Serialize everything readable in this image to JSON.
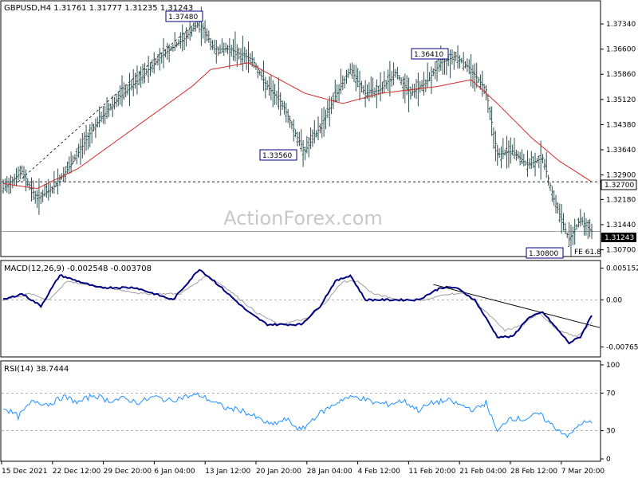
{
  "colors": {
    "price": "#2f4f4f",
    "ma": "#d42a2a",
    "macd": "#000080",
    "signal": "#a0a0a0",
    "rsi": "#1e90ff",
    "box_border": "#000080"
  },
  "chart_data": [
    {
      "type": "candlestick",
      "title": "GBPUSD,H4  1.31761 1.31777 1.31235 1.31243",
      "ylim": [
        1.3055,
        1.3795
      ],
      "y_ticks": [
        "1.37340",
        "1.36600",
        "1.35860",
        "1.35120",
        "1.34380",
        "1.33640",
        "1.32900",
        "1.32180",
        "1.31440",
        "1.30700"
      ],
      "x_labels": [
        "15 Dec 2021",
        "22 Dec 12:00",
        "29 Dec 20:00",
        "6 Jan 04:00",
        "13 Jan 12:00",
        "20 Jan 20:00",
        "28 Jan 04:00",
        "4 Feb 12:00",
        "11 Feb 20:00",
        "21 Feb 04:00",
        "28 Feb 12:00",
        "7 Mar 20:00"
      ],
      "annotations": [
        "1.37480",
        "1.36410",
        "1.33560",
        "1.30800",
        "FE 61.8"
      ],
      "levels": [
        "1.32700",
        "1.31243"
      ],
      "watermark": "ActionForex.com",
      "close_anchors": [
        [
          0,
          1.325
        ],
        [
          10,
          1.33
        ],
        [
          18,
          1.322
        ],
        [
          26,
          1.325
        ],
        [
          36,
          1.332
        ],
        [
          48,
          1.343
        ],
        [
          60,
          1.351
        ],
        [
          72,
          1.357
        ],
        [
          84,
          1.364
        ],
        [
          96,
          1.369
        ],
        [
          104,
          1.374
        ],
        [
          112,
          1.366
        ],
        [
          120,
          1.366
        ],
        [
          132,
          1.363
        ],
        [
          140,
          1.355
        ],
        [
          148,
          1.35
        ],
        [
          156,
          1.34
        ],
        [
          160,
          1.336
        ],
        [
          168,
          1.343
        ],
        [
          176,
          1.352
        ],
        [
          184,
          1.36
        ],
        [
          192,
          1.353
        ],
        [
          200,
          1.354
        ],
        [
          208,
          1.359
        ],
        [
          216,
          1.353
        ],
        [
          224,
          1.356
        ],
        [
          232,
          1.362
        ],
        [
          240,
          1.364
        ],
        [
          248,
          1.36
        ],
        [
          256,
          1.354
        ],
        [
          262,
          1.335
        ],
        [
          270,
          1.336
        ],
        [
          278,
          1.332
        ],
        [
          286,
          1.334
        ],
        [
          292,
          1.322
        ],
        [
          300,
          1.31
        ],
        [
          306,
          1.316
        ],
        [
          312,
          1.3124
        ]
      ],
      "ma_anchors": [
        [
          0,
          1.3265
        ],
        [
          18,
          1.325
        ],
        [
          40,
          1.331
        ],
        [
          70,
          1.343
        ],
        [
          100,
          1.355
        ],
        [
          110,
          1.36
        ],
        [
          130,
          1.362
        ],
        [
          160,
          1.353
        ],
        [
          180,
          1.35
        ],
        [
          200,
          1.353
        ],
        [
          230,
          1.355
        ],
        [
          248,
          1.357
        ],
        [
          262,
          1.35
        ],
        [
          280,
          1.34
        ],
        [
          295,
          1.333
        ],
        [
          312,
          1.327
        ]
      ]
    },
    {
      "type": "line",
      "title": "MACD(12,26,9) -0.002548 -0.003708",
      "ylim": [
        -0.009,
        0.006
      ],
      "y_ticks": [
        "0.005152",
        "0.00",
        "-0.00765"
      ],
      "series": [
        {
          "name": "MACD",
          "anchors": [
            [
              0,
              0.0
            ],
            [
              10,
              0.001
            ],
            [
              20,
              -0.001
            ],
            [
              30,
              0.004
            ],
            [
              50,
              0.002
            ],
            [
              70,
              0.002
            ],
            [
              90,
              0.0
            ],
            [
              104,
              0.005
            ],
            [
              112,
              0.003
            ],
            [
              130,
              -0.002
            ],
            [
              140,
              -0.004
            ],
            [
              158,
              -0.004
            ],
            [
              168,
              -0.001
            ],
            [
              176,
              0.003
            ],
            [
              184,
              0.004
            ],
            [
              192,
              0.0
            ],
            [
              200,
              0.0
            ],
            [
              220,
              0.0
            ],
            [
              232,
              0.002
            ],
            [
              240,
              0.002
            ],
            [
              250,
              0.0
            ],
            [
              262,
              -0.006
            ],
            [
              270,
              -0.006
            ],
            [
              278,
              -0.003
            ],
            [
              286,
              -0.002
            ],
            [
              300,
              -0.007
            ],
            [
              306,
              -0.006
            ],
            [
              312,
              -0.0025
            ]
          ]
        },
        {
          "name": "Signal",
          "anchors": [
            [
              0,
              0.0
            ],
            [
              14,
              0.001
            ],
            [
              24,
              0.0
            ],
            [
              34,
              0.003
            ],
            [
              54,
              0.002
            ],
            [
              74,
              0.001
            ],
            [
              94,
              0.001
            ],
            [
              108,
              0.004
            ],
            [
              118,
              0.002
            ],
            [
              134,
              -0.002
            ],
            [
              146,
              -0.004
            ],
            [
              162,
              -0.003
            ],
            [
              172,
              0.0
            ],
            [
              180,
              0.003
            ],
            [
              188,
              0.003
            ],
            [
              196,
              0.001
            ],
            [
              210,
              0.0
            ],
            [
              224,
              0.0
            ],
            [
              236,
              0.001
            ],
            [
              246,
              0.001
            ],
            [
              256,
              -0.002
            ],
            [
              266,
              -0.005
            ],
            [
              276,
              -0.004
            ],
            [
              284,
              -0.002
            ],
            [
              294,
              -0.005
            ],
            [
              304,
              -0.006
            ],
            [
              312,
              -0.0037
            ]
          ]
        }
      ]
    },
    {
      "type": "line",
      "title": "RSI(14) 38.7444",
      "ylim": [
        0,
        100
      ],
      "y_ticks": [
        "100",
        "70",
        "30",
        "0"
      ],
      "series": [
        {
          "name": "RSI",
          "anchors": [
            [
              0,
              55
            ],
            [
              8,
              45
            ],
            [
              16,
              62
            ],
            [
              24,
              58
            ],
            [
              32,
              66
            ],
            [
              40,
              60
            ],
            [
              48,
              68
            ],
            [
              56,
              62
            ],
            [
              64,
              64
            ],
            [
              72,
              60
            ],
            [
              80,
              66
            ],
            [
              88,
              62
            ],
            [
              96,
              66
            ],
            [
              104,
              68
            ],
            [
              110,
              62
            ],
            [
              118,
              54
            ],
            [
              126,
              52
            ],
            [
              134,
              44
            ],
            [
              142,
              36
            ],
            [
              150,
              42
            ],
            [
              158,
              30
            ],
            [
              166,
              46
            ],
            [
              174,
              56
            ],
            [
              180,
              64
            ],
            [
              188,
              66
            ],
            [
              196,
              60
            ],
            [
              204,
              58
            ],
            [
              212,
              62
            ],
            [
              220,
              52
            ],
            [
              228,
              60
            ],
            [
              236,
              62
            ],
            [
              244,
              56
            ],
            [
              250,
              52
            ],
            [
              256,
              60
            ],
            [
              262,
              28
            ],
            [
              268,
              44
            ],
            [
              276,
              42
            ],
            [
              284,
              48
            ],
            [
              292,
              34
            ],
            [
              300,
              24
            ],
            [
              306,
              38
            ],
            [
              312,
              38.7
            ]
          ]
        }
      ]
    }
  ]
}
